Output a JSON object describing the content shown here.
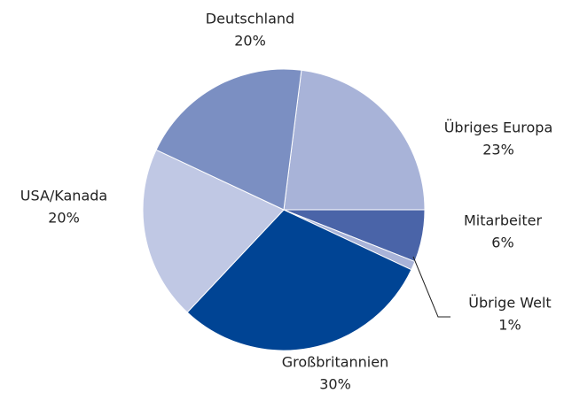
{
  "chart_data": {
    "type": "pie",
    "categories": [
      "Übriges Europa",
      "Mitarbeiter",
      "Übrige Welt",
      "Großbritannien",
      "USA/Kanada",
      "Deutschland"
    ],
    "values": [
      23,
      6,
      1,
      30,
      20,
      20
    ],
    "value_labels": [
      "23%",
      "6%",
      "1%",
      "30%",
      "20%",
      "20%"
    ],
    "colors": [
      "#a8b3d8",
      "#4a64a8",
      "#a8b3d8",
      "#004494",
      "#c0c8e4",
      "#7b8fc2"
    ]
  }
}
